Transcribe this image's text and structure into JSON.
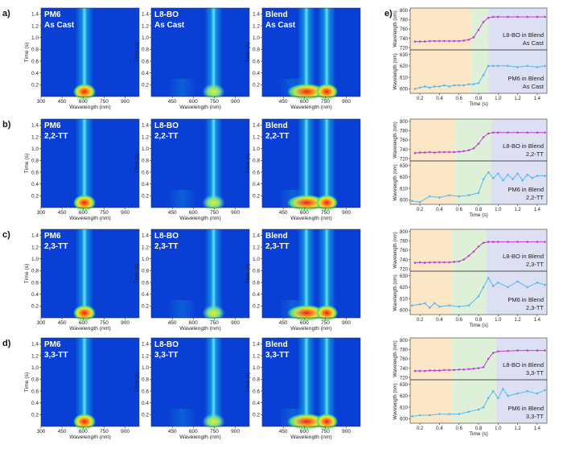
{
  "colors": {
    "map_low": "#0a3fd6",
    "map_mid": "#12c8e6",
    "map_high": "#f5e23a",
    "map_peak": "#e2231a",
    "line_l8bo": "#c040d8",
    "line_pm6": "#5ab8ec",
    "band_orange": "#fbe7c6",
    "band_green": "#def0d8",
    "band_blue": "#dde0f2"
  },
  "axis_labels": {
    "time": "Time (s)",
    "wavelength": "Wavelength (nm)",
    "time_e": "Time (s)",
    "wavelength_e": "Wavelength (nm)"
  },
  "heatmap_axes": {
    "time_ticks": [
      "0.2",
      "0.4",
      "0.6",
      "0.8",
      "1.0",
      "1.2",
      "1.4"
    ],
    "wl_ticks_pm6": [
      "300",
      "450",
      "600",
      "750",
      "900"
    ],
    "wl_ticks_l8bo": [
      "450",
      "600",
      "750",
      "900"
    ],
    "wl_ticks_blend": [
      "450",
      "600",
      "750",
      "900"
    ]
  },
  "line_axes": {
    "top_ticks": [
      "720",
      "740",
      "760",
      "780",
      "800"
    ],
    "bottom_ticks": [
      "600",
      "610",
      "620",
      "630"
    ],
    "x_ticks": [
      "0.2",
      "0.4",
      "0.6",
      "0.8",
      "1.0",
      "1.2",
      "1.4"
    ]
  },
  "rows": [
    {
      "letter": "a)",
      "treatment": "As Cast",
      "labels": {
        "pm6": [
          "PM6",
          "As Cast"
        ],
        "l8bo": [
          "L8-BO",
          "As Cast"
        ],
        "blend": [
          "Blend",
          "As Cast"
        ]
      },
      "legend_top": [
        "L8-BO in Blend",
        "As Cast"
      ],
      "legend_bottom": [
        "PM6 in Blend",
        "As Cast"
      ]
    },
    {
      "letter": "b)",
      "treatment": "2,2-TT",
      "labels": {
        "pm6": [
          "PM6",
          "2,2-TT"
        ],
        "l8bo": [
          "L8-BO",
          "2,2-TT"
        ],
        "blend": [
          "Blend",
          "2,2-TT"
        ]
      },
      "legend_top": [
        "L8-BO in Blend",
        "2,2-TT"
      ],
      "legend_bottom": [
        "PM6 in Blend",
        "2,2-TT"
      ]
    },
    {
      "letter": "c)",
      "treatment": "2,3-TT",
      "labels": {
        "pm6": [
          "PM6",
          "2,3-TT"
        ],
        "l8bo": [
          "L8-BO",
          "2,3-TT"
        ],
        "blend": [
          "Blend",
          "2,3-TT"
        ]
      },
      "legend_top": [
        "L8-BO in Blend",
        "2,3-TT"
      ],
      "legend_bottom": [
        "PM6 in Blend",
        "2,3-TT"
      ]
    },
    {
      "letter": "d)",
      "treatment": "3,3-TT",
      "labels": {
        "pm6": [
          "PM6",
          "3,3-TT"
        ],
        "l8bo": [
          "L8-BO",
          "3,3-TT"
        ],
        "blend": [
          "Blend",
          "3,3-TT"
        ]
      },
      "legend_top": [
        "L8-BO in Blend",
        "3,3-TT"
      ],
      "legend_bottom": [
        "PM6 in Blend",
        "3,3-TT"
      ]
    }
  ],
  "panel_e_letter": "e)",
  "chart_data": [
    {
      "panel": "a-d",
      "type": "heatmap",
      "xlabel": "Wavelength (nm)",
      "ylabel": "Time (s)",
      "xlim": [
        300,
        1000
      ],
      "ylim": [
        0,
        1.5
      ],
      "series": [
        {
          "name": "PM6",
          "peak_nm": 610
        },
        {
          "name": "L8-BO",
          "peak_nm": 745
        },
        {
          "name": "Blend",
          "peak_nm": [
            615,
            760
          ]
        }
      ]
    },
    {
      "panel": "e",
      "type": "line",
      "xlabel": "Time (s)",
      "xlim": [
        0.1,
        1.5
      ],
      "ylabel_top": "Wavelength (nm)",
      "ylim_top": [
        715,
        805
      ],
      "ylabel_bottom": "Wavelength (nm)",
      "ylim_bottom": [
        596,
        634
      ],
      "rows": [
        {
          "name": "As Cast",
          "bands": [
            0.72,
            0.9
          ],
          "top": {
            "x": [
              0.15,
              0.2,
              0.25,
              0.3,
              0.35,
              0.4,
              0.45,
              0.5,
              0.55,
              0.6,
              0.65,
              0.7,
              0.75,
              0.8,
              0.85,
              0.9,
              0.95,
              1.0,
              1.1,
              1.2,
              1.3,
              1.4,
              1.48
            ],
            "y": [
              733,
              733,
              733,
              734,
              734,
              734,
              734,
              734,
              734,
              734,
              735,
              737,
              742,
              758,
              775,
              784,
              786,
              786,
              786,
              786,
              786,
              786,
              786
            ]
          },
          "bottom": {
            "x": [
              0.15,
              0.2,
              0.25,
              0.3,
              0.35,
              0.4,
              0.45,
              0.5,
              0.55,
              0.6,
              0.65,
              0.7,
              0.75,
              0.8,
              0.85,
              0.9,
              0.95,
              1.0,
              1.1,
              1.2,
              1.3,
              1.4,
              1.48
            ],
            "y": [
              600,
              601,
              602,
              601,
              602,
              602,
              603,
              602,
              603,
              603,
              603,
              604,
              604,
              605,
              612,
              620,
              620,
              620,
              620,
              619,
              620,
              619,
              620
            ]
          }
        },
        {
          "name": "2,2-TT",
          "bands": [
            0.56,
            0.93
          ],
          "top": {
            "x": [
              0.15,
              0.2,
              0.25,
              0.3,
              0.35,
              0.4,
              0.45,
              0.5,
              0.55,
              0.6,
              0.65,
              0.7,
              0.75,
              0.8,
              0.85,
              0.9,
              0.95,
              1.0,
              1.1,
              1.2,
              1.3,
              1.4,
              1.48
            ],
            "y": [
              732,
              733,
              733,
              734,
              733,
              734,
              734,
              734,
              734,
              735,
              736,
              738,
              742,
              752,
              766,
              774,
              776,
              776,
              776,
              776,
              776,
              776,
              776
            ]
          },
          "bottom": {
            "x": [
              0.12,
              0.2,
              0.3,
              0.4,
              0.5,
              0.6,
              0.7,
              0.8,
              0.85,
              0.9,
              0.95,
              1.0,
              1.05,
              1.1,
              1.15,
              1.2,
              1.25,
              1.3,
              1.35,
              1.4,
              1.48
            ],
            "y": [
              599,
              598,
              603,
              602,
              604,
              603,
              604,
              606,
              618,
              624,
              619,
              623,
              617,
              622,
              618,
              623,
              617,
              622,
              619,
              621,
              621
            ]
          }
        },
        {
          "name": "2,3-TT",
          "bands": [
            0.53,
            0.88
          ],
          "top": {
            "x": [
              0.15,
              0.2,
              0.25,
              0.3,
              0.35,
              0.4,
              0.45,
              0.5,
              0.55,
              0.6,
              0.65,
              0.7,
              0.75,
              0.8,
              0.85,
              0.9,
              0.95,
              1.0,
              1.1,
              1.2,
              1.3,
              1.4,
              1.48
            ],
            "y": [
              733,
              734,
              733,
              734,
              734,
              734,
              734,
              734,
              735,
              736,
              740,
              748,
              757,
              768,
              776,
              778,
              778,
              778,
              778,
              778,
              778,
              778,
              778
            ]
          },
          "bottom": {
            "x": [
              0.12,
              0.2,
              0.25,
              0.3,
              0.35,
              0.4,
              0.5,
              0.6,
              0.7,
              0.8,
              0.85,
              0.9,
              0.95,
              1.0,
              1.1,
              1.2,
              1.3,
              1.4,
              1.48
            ],
            "y": [
              604,
              605,
              606,
              602,
              606,
              603,
              604,
              603,
              604,
              612,
              620,
              628,
              621,
              624,
              620,
              625,
              620,
              624,
              622
            ]
          }
        },
        {
          "name": "3,3-TT",
          "bands": [
            0.53,
            0.98
          ],
          "top": {
            "x": [
              0.15,
              0.2,
              0.25,
              0.3,
              0.35,
              0.4,
              0.45,
              0.5,
              0.55,
              0.6,
              0.65,
              0.7,
              0.75,
              0.8,
              0.85,
              0.9,
              0.95,
              1.0,
              1.1,
              1.2,
              1.3,
              1.4,
              1.48
            ],
            "y": [
              734,
              734,
              734,
              735,
              735,
              735,
              736,
              736,
              736,
              737,
              737,
              738,
              739,
              740,
              742,
              760,
              773,
              776,
              777,
              778,
              778,
              778,
              778
            ]
          },
          "bottom": {
            "x": [
              0.12,
              0.2,
              0.3,
              0.4,
              0.5,
              0.6,
              0.7,
              0.8,
              0.85,
              0.9,
              0.95,
              1.0,
              1.05,
              1.1,
              1.2,
              1.3,
              1.4,
              1.48
            ],
            "y": [
              602,
              603,
              603,
              604,
              604,
              604,
              606,
              608,
              610,
              618,
              624,
              618,
              626,
              620,
              622,
              624,
              622,
              625
            ]
          }
        }
      ]
    }
  ]
}
